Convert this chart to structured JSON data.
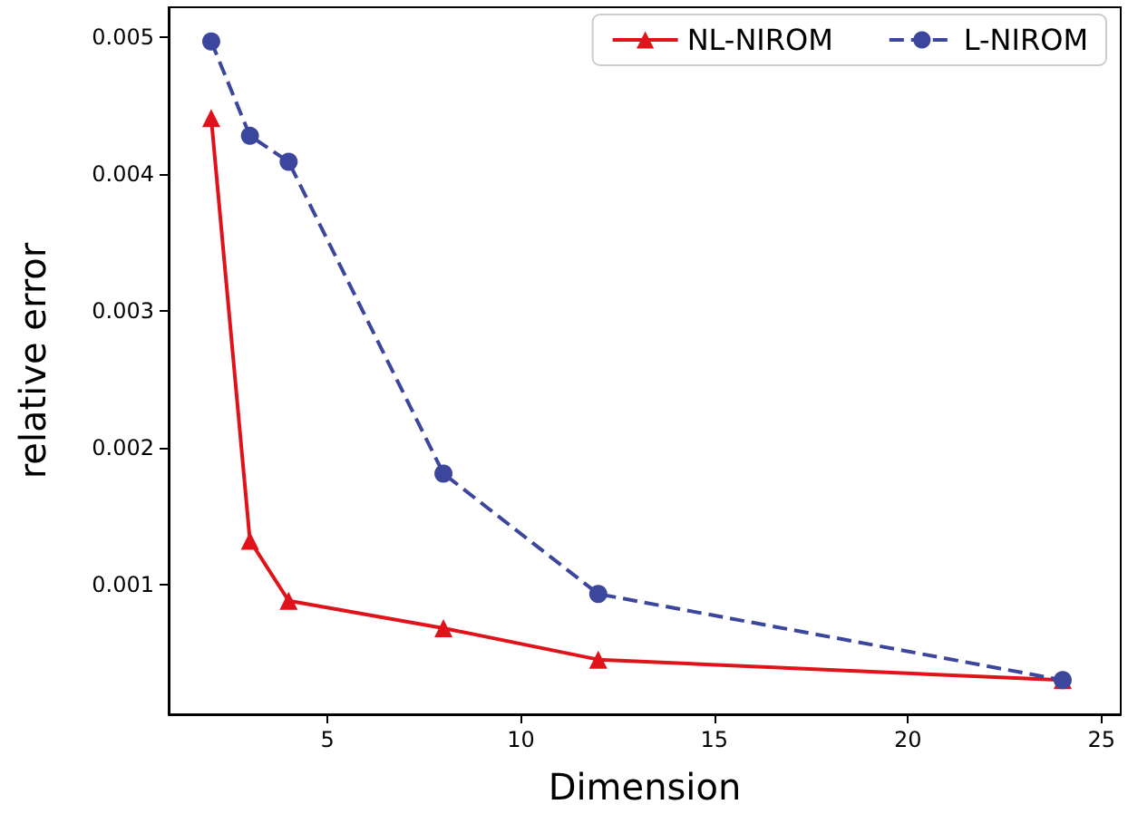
{
  "chart_data": {
    "type": "line",
    "xlabel": "Dimension",
    "ylabel": "relative error",
    "x": [
      2,
      3,
      4,
      8,
      12,
      24
    ],
    "series": [
      {
        "name": "NL-NIROM",
        "color": "#e0131a",
        "marker": "triangle",
        "line_style": "solid",
        "values": [
          0.00441,
          0.00132,
          0.00088,
          0.00068,
          0.00045,
          0.0003
        ]
      },
      {
        "name": "L-NIROM",
        "color": "#3c469c",
        "marker": "circle",
        "line_style": "dashed",
        "values": [
          0.00497,
          0.00428,
          0.00409,
          0.00181,
          0.00093,
          0.0003
        ]
      }
    ],
    "xlim": [
      0.9,
      25.5
    ],
    "xticks": [
      5,
      10,
      15,
      20,
      25
    ],
    "ylim": [
      5e-05,
      0.00522
    ],
    "yticks": [
      0.001,
      0.002,
      0.003,
      0.004,
      0.005
    ],
    "grid": false,
    "legend": "top right"
  }
}
